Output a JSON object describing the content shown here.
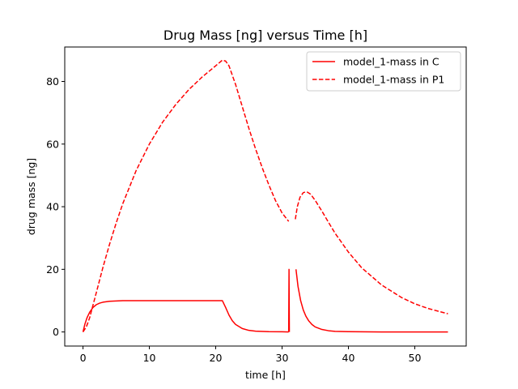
{
  "chart_data": {
    "type": "line",
    "title": "Drug Mass [ng] versus Time [h]",
    "xlabel": "time [h]",
    "ylabel": "drug mass [ng]",
    "xlim": [
      -2.75,
      57.75
    ],
    "ylim": [
      -4.5,
      91
    ],
    "x_ticks": [
      0,
      10,
      20,
      30,
      40,
      50
    ],
    "x_tick_labels": [
      "0",
      "10",
      "20",
      "30",
      "40",
      "50"
    ],
    "y_ticks": [
      0,
      20,
      40,
      60,
      80
    ],
    "y_tick_labels": [
      "0",
      "20",
      "40",
      "60",
      "80"
    ],
    "grid": false,
    "legend_position": "top-right",
    "series": [
      {
        "name": "model_1-mass in C",
        "color": "#ff0000",
        "style": "solid",
        "segments": [
          {
            "x": [
              0,
              0.3,
              0.6,
              1,
              1.5,
              2,
              2.5,
              3,
              4,
              5,
              6,
              8,
              10,
              15,
              20,
              21,
              21.5,
              22,
              22.5,
              23,
              24,
              25,
              26,
              28,
              30,
              31
            ],
            "y": [
              0,
              2.6,
              4.5,
              6.3,
              7.8,
              8.7,
              9.2,
              9.5,
              9.8,
              9.9,
              10,
              10,
              10,
              10,
              10,
              10,
              7.8,
              5.4,
              3.6,
              2.4,
              1.1,
              0.5,
              0.25,
              0.1,
              0.05,
              0
            ]
          },
          {
            "x": [
              31,
              31.05,
              31.1
            ],
            "y": [
              0,
              20,
              0
            ]
          },
          {
            "x": [
              32.1,
              32.4,
              32.8,
              33.2,
              33.6,
              34,
              34.5,
              35,
              36,
              37,
              38,
              40,
              45,
              50,
              55
            ],
            "y": [
              20,
              14.6,
              10,
              7,
              5,
              3.6,
              2.4,
              1.6,
              0.8,
              0.4,
              0.2,
              0.1,
              0,
              0,
              0
            ]
          }
        ]
      },
      {
        "name": "model_1-mass in P1",
        "color": "#ff0000",
        "style": "dashed",
        "segments": [
          {
            "x": [
              0,
              0.5,
              1,
              2,
              3,
              4,
              5,
              6,
              8,
              10,
              12,
              14,
              16,
              18,
              20,
              21,
              21.5,
              22,
              23,
              24,
              25,
              26,
              27,
              28,
              29,
              30,
              31
            ],
            "y": [
              0,
              1.6,
              4.5,
              12.5,
              20.6,
              28,
              34.8,
              41,
              51.5,
              60,
              67,
              72.7,
              77.5,
              81.5,
              85,
              86.8,
              86.5,
              85,
              79,
              72,
              65,
              58.5,
              52.5,
              47,
              42,
              38,
              35.3
            ]
          },
          {
            "x": [
              32,
              32.3,
              32.7,
              33.2,
              33.7,
              34.3,
              35,
              36,
              37,
              38,
              40,
              42,
              45,
              48,
              50,
              52,
              55
            ],
            "y": [
              36,
              40,
              43,
              44.5,
              44.8,
              44,
              42,
              38.6,
              35,
              31.5,
              25.5,
              20.5,
              15,
              11,
              9,
              7.5,
              5.8
            ]
          }
        ]
      }
    ]
  }
}
